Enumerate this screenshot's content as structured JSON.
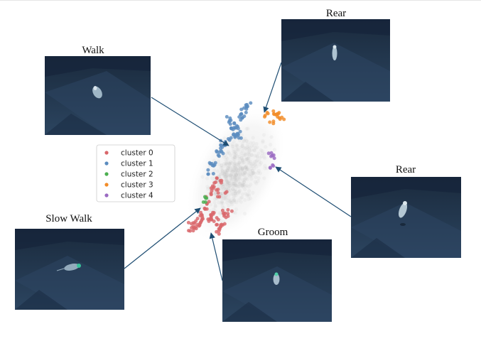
{
  "panels": [
    {
      "key": "walk",
      "label": "Walk"
    },
    {
      "key": "rear_top",
      "label": "Rear"
    },
    {
      "key": "rear_right",
      "label": "Rear"
    },
    {
      "key": "slow_walk",
      "label": "Slow Walk"
    },
    {
      "key": "groom",
      "label": "Groom"
    }
  ],
  "legend": {
    "entries": [
      {
        "label": "cluster 0",
        "color": "#d9666a"
      },
      {
        "label": "cluster 1",
        "color": "#5b8cbf"
      },
      {
        "label": "cluster 2",
        "color": "#4caf50"
      },
      {
        "label": "cluster 3",
        "color": "#f28c28"
      },
      {
        "label": "cluster 4",
        "color": "#9a6ac2"
      }
    ]
  },
  "colors": {
    "arrow": "#1f4e73",
    "panel_bg": "#1e3148",
    "panel_light": "#2f4a68",
    "background_points": "#bfbfbf"
  }
}
